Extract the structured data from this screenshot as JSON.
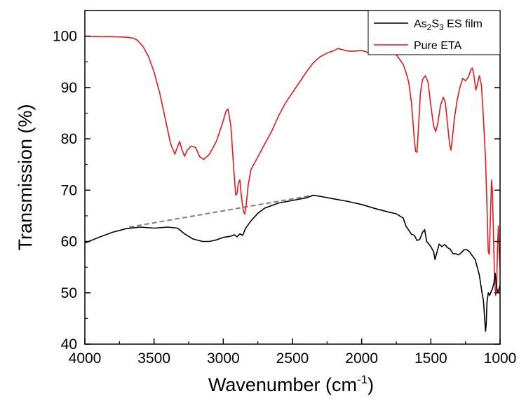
{
  "chart_data": {
    "type": "line",
    "title": "",
    "xlabel": "Wavenumber (cm",
    "xlabel_superscript": "-1",
    "xlabel_suffix": ")",
    "ylabel": "Transmission (%)",
    "xlim": [
      4000,
      1000
    ],
    "ylim": [
      40,
      105
    ],
    "x_reversed": true,
    "x_ticks": [
      4000,
      3500,
      3000,
      2500,
      2000,
      1500,
      1000
    ],
    "y_ticks": [
      40,
      50,
      60,
      70,
      80,
      90,
      100
    ],
    "x_tick_labels": [
      "4000",
      "3500",
      "3000",
      "2500",
      "2000",
      "1500",
      "1000"
    ],
    "y_tick_labels": [
      "40",
      "50",
      "60",
      "70",
      "80",
      "90",
      "100"
    ],
    "grid": false,
    "legend_position": "top-right",
    "series": [
      {
        "name": "As2S3 ES film",
        "legend": {
          "base1": "As",
          "sub1": "2",
          "base2": "S",
          "sub2": "3",
          "rest": " ES film"
        },
        "color": "#000000",
        "points": [
          [
            4000,
            59.7
          ],
          [
            3900,
            60.8
          ],
          [
            3800,
            61.8
          ],
          [
            3700,
            62.5
          ],
          [
            3600,
            62.8
          ],
          [
            3500,
            62.6
          ],
          [
            3400,
            62.8
          ],
          [
            3330,
            62.6
          ],
          [
            3280,
            61.5
          ],
          [
            3220,
            60.5
          ],
          [
            3150,
            60.0
          ],
          [
            3100,
            60.0
          ],
          [
            3050,
            60.3
          ],
          [
            3000,
            60.8
          ],
          [
            2950,
            61.0
          ],
          [
            2920,
            61.3
          ],
          [
            2900,
            60.9
          ],
          [
            2880,
            61.5
          ],
          [
            2860,
            61.2
          ],
          [
            2840,
            62.5
          ],
          [
            2800,
            64.0
          ],
          [
            2750,
            65.5
          ],
          [
            2700,
            66.5
          ],
          [
            2600,
            67.5
          ],
          [
            2500,
            68.0
          ],
          [
            2400,
            68.5
          ],
          [
            2350,
            69.0
          ],
          [
            2300,
            68.8
          ],
          [
            2200,
            68.3
          ],
          [
            2100,
            67.8
          ],
          [
            2000,
            67.2
          ],
          [
            1900,
            66.4
          ],
          [
            1800,
            65.7
          ],
          [
            1750,
            65.4
          ],
          [
            1720,
            64.9
          ],
          [
            1700,
            64.6
          ],
          [
            1680,
            63.0
          ],
          [
            1660,
            62.2
          ],
          [
            1640,
            61.4
          ],
          [
            1620,
            61.2
          ],
          [
            1600,
            60.2
          ],
          [
            1580,
            60.4
          ],
          [
            1560,
            61.8
          ],
          [
            1545,
            62.3
          ],
          [
            1530,
            60.0
          ],
          [
            1500,
            59.0
          ],
          [
            1480,
            58.0
          ],
          [
            1470,
            56.5
          ],
          [
            1460,
            57.5
          ],
          [
            1440,
            59.5
          ],
          [
            1420,
            59.0
          ],
          [
            1400,
            59.4
          ],
          [
            1380,
            58.8
          ],
          [
            1360,
            58.5
          ],
          [
            1340,
            57.6
          ],
          [
            1320,
            57.6
          ],
          [
            1300,
            57.4
          ],
          [
            1280,
            57.8
          ],
          [
            1260,
            58.4
          ],
          [
            1240,
            58.4
          ],
          [
            1220,
            58.0
          ],
          [
            1200,
            57.2
          ],
          [
            1180,
            56.5
          ],
          [
            1150,
            53.5
          ],
          [
            1130,
            50.0
          ],
          [
            1120,
            48.5
          ],
          [
            1110,
            44.5
          ],
          [
            1105,
            42.5
          ],
          [
            1100,
            44.0
          ],
          [
            1095,
            48.0
          ],
          [
            1085,
            50.0
          ],
          [
            1075,
            49.5
          ],
          [
            1065,
            50.2
          ],
          [
            1055,
            50.8
          ],
          [
            1045,
            51.8
          ],
          [
            1035,
            53.8
          ],
          [
            1025,
            51.0
          ],
          [
            1015,
            50.0
          ],
          [
            1005,
            51.0
          ],
          [
            1000,
            51.5
          ]
        ]
      },
      {
        "name": "Pure ETA",
        "color": "#e8191d",
        "points": [
          [
            4000,
            100.0
          ],
          [
            3900,
            99.9
          ],
          [
            3800,
            99.9
          ],
          [
            3700,
            99.8
          ],
          [
            3650,
            99.6
          ],
          [
            3620,
            99.2
          ],
          [
            3580,
            98.0
          ],
          [
            3540,
            96.0
          ],
          [
            3500,
            93.0
          ],
          [
            3460,
            89.0
          ],
          [
            3420,
            84.0
          ],
          [
            3380,
            79.0
          ],
          [
            3350,
            77.0
          ],
          [
            3330,
            78.5
          ],
          [
            3315,
            79.5
          ],
          [
            3300,
            78.0
          ],
          [
            3280,
            76.6
          ],
          [
            3260,
            77.8
          ],
          [
            3230,
            78.6
          ],
          [
            3200,
            78.3
          ],
          [
            3170,
            76.5
          ],
          [
            3140,
            76.0
          ],
          [
            3100,
            77.0
          ],
          [
            3050,
            79.5
          ],
          [
            3000,
            83.5
          ],
          [
            2980,
            85.4
          ],
          [
            2965,
            85.8
          ],
          [
            2945,
            82.5
          ],
          [
            2925,
            74.5
          ],
          [
            2910,
            69.0
          ],
          [
            2900,
            69.5
          ],
          [
            2890,
            71.5
          ],
          [
            2880,
            72.0
          ],
          [
            2870,
            69.0
          ],
          [
            2855,
            66.0
          ],
          [
            2845,
            65.3
          ],
          [
            2835,
            67.0
          ],
          [
            2820,
            71.0
          ],
          [
            2800,
            74.0
          ],
          [
            2750,
            76.5
          ],
          [
            2700,
            79.0
          ],
          [
            2650,
            81.5
          ],
          [
            2600,
            84.5
          ],
          [
            2550,
            87.0
          ],
          [
            2500,
            89.0
          ],
          [
            2450,
            91.0
          ],
          [
            2400,
            93.0
          ],
          [
            2350,
            94.8
          ],
          [
            2300,
            96.0
          ],
          [
            2250,
            96.7
          ],
          [
            2200,
            97.2
          ],
          [
            2170,
            97.6
          ],
          [
            2100,
            97.1
          ],
          [
            2050,
            97.1
          ],
          [
            2000,
            97.2
          ],
          [
            1950,
            96.8
          ],
          [
            1900,
            96.6
          ],
          [
            1800,
            96.6
          ],
          [
            1750,
            96.4
          ],
          [
            1700,
            94.5
          ],
          [
            1680,
            93.0
          ],
          [
            1660,
            91.0
          ],
          [
            1640,
            87.0
          ],
          [
            1620,
            80.0
          ],
          [
            1610,
            77.5
          ],
          [
            1600,
            77.4
          ],
          [
            1590,
            82.0
          ],
          [
            1575,
            89.0
          ],
          [
            1560,
            91.6
          ],
          [
            1540,
            92.3
          ],
          [
            1520,
            91.0
          ],
          [
            1500,
            86.5
          ],
          [
            1480,
            82.5
          ],
          [
            1465,
            81.4
          ],
          [
            1450,
            83.0
          ],
          [
            1430,
            86.5
          ],
          [
            1410,
            88.1
          ],
          [
            1395,
            87.0
          ],
          [
            1380,
            83.0
          ],
          [
            1365,
            79.0
          ],
          [
            1355,
            77.8
          ],
          [
            1345,
            80.0
          ],
          [
            1330,
            84.0
          ],
          [
            1310,
            87.5
          ],
          [
            1290,
            90.0
          ],
          [
            1270,
            91.8
          ],
          [
            1250,
            91.3
          ],
          [
            1230,
            92.0
          ],
          [
            1210,
            93.5
          ],
          [
            1200,
            93.8
          ],
          [
            1190,
            92.5
          ],
          [
            1175,
            89.5
          ],
          [
            1165,
            90.5
          ],
          [
            1150,
            92.3
          ],
          [
            1135,
            90.5
          ],
          [
            1120,
            84.0
          ],
          [
            1105,
            76.0
          ],
          [
            1095,
            67.0
          ],
          [
            1085,
            58.0
          ],
          [
            1078,
            57.5
          ],
          [
            1070,
            64.0
          ],
          [
            1062,
            72.0
          ],
          [
            1055,
            70.0
          ],
          [
            1048,
            62.0
          ],
          [
            1040,
            53.0
          ],
          [
            1032,
            49.5
          ],
          [
            1025,
            51.0
          ],
          [
            1018,
            59.0
          ],
          [
            1012,
            63.0
          ],
          [
            1006,
            58.0
          ],
          [
            1000,
            55.0
          ]
        ]
      }
    ],
    "annotations": [
      {
        "type": "dashed-baseline",
        "color": "#808080",
        "points": [
          [
            3680,
            62.8
          ],
          [
            2350,
            69.0
          ]
        ]
      }
    ]
  }
}
